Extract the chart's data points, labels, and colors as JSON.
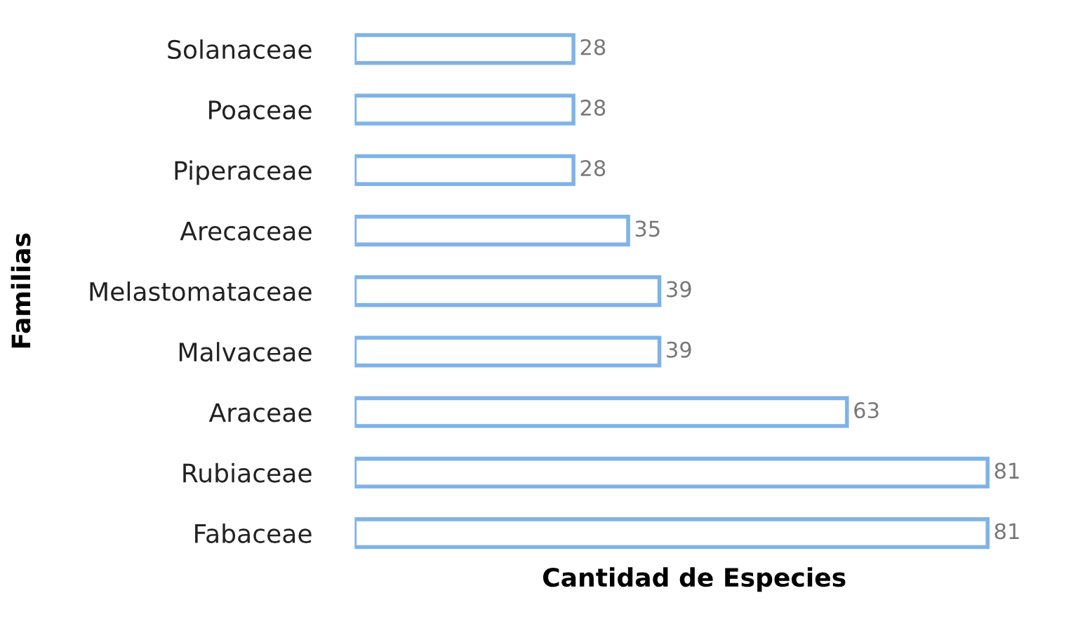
{
  "chart_data": {
    "type": "bar",
    "orientation": "horizontal",
    "xlabel": "Cantidad de Especies",
    "ylabel": "Familias",
    "categories": [
      "Solanaceae",
      "Poaceae",
      "Piperaceae",
      "Arecaceae",
      "Melastomataceae",
      "Malvaceae",
      "Araceae",
      "Rubiaceae",
      "Fabaceae"
    ],
    "values": [
      28,
      28,
      28,
      35,
      39,
      39,
      63,
      81,
      81
    ],
    "color": "#7fb3e8",
    "data_labels": true,
    "tick_labels": "y",
    "grid": false,
    "legend": false
  }
}
